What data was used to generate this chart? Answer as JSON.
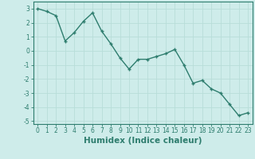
{
  "x": [
    0,
    1,
    2,
    3,
    4,
    5,
    6,
    7,
    8,
    9,
    10,
    11,
    12,
    13,
    14,
    15,
    16,
    17,
    18,
    19,
    20,
    21,
    22,
    23
  ],
  "y": [
    3.0,
    2.8,
    2.5,
    0.7,
    1.3,
    2.1,
    2.7,
    1.4,
    0.5,
    -0.5,
    -1.3,
    -0.6,
    -0.6,
    -0.4,
    -0.2,
    0.1,
    -1.0,
    -2.3,
    -2.1,
    -2.7,
    -3.0,
    -3.8,
    -4.6,
    -4.4
  ],
  "xlabel": "Humidex (Indice chaleur)",
  "line_color": "#2e7d6e",
  "bg_color": "#ceecea",
  "grid_color": "#b8ddd9",
  "ylim": [
    -5.2,
    3.5
  ],
  "xlim": [
    -0.5,
    23.5
  ],
  "yticks": [
    -5,
    -4,
    -3,
    -2,
    -1,
    0,
    1,
    2,
    3
  ],
  "xticks": [
    0,
    1,
    2,
    3,
    4,
    5,
    6,
    7,
    8,
    9,
    10,
    11,
    12,
    13,
    14,
    15,
    16,
    17,
    18,
    19,
    20,
    21,
    22,
    23
  ],
  "tick_fontsize": 5.5,
  "xlabel_fontsize": 7.5,
  "marker": "+",
  "markersize": 3.5,
  "linewidth": 1.0
}
